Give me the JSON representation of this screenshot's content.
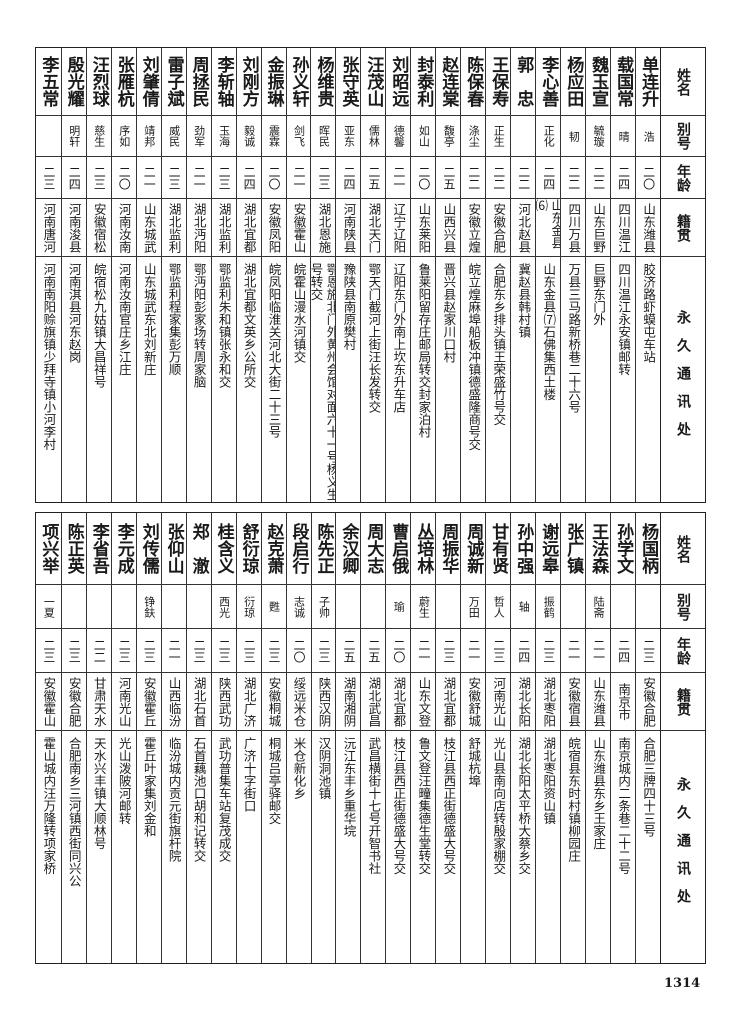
{
  "header": {
    "name": "姓名",
    "alias": "别号",
    "age": "年龄",
    "origin": "籍贯",
    "address": "永久通讯处"
  },
  "tables": [
    {
      "rows": [
        {
          "name": "单连升",
          "alias": "浩",
          "age": "二〇",
          "origin": "山东潍县",
          "address": "胶济路虾蟆屯车站"
        },
        {
          "name": "载国常",
          "alias": "晴",
          "age": "二四",
          "origin": "四川温江",
          "address": "四川温江永安镇邮转"
        },
        {
          "name": "魏玉宣",
          "alias": "毓璇",
          "age": "二二",
          "origin": "山东巨野",
          "address": "巨野东门外"
        },
        {
          "name": "杨应田",
          "alias": "韧",
          "age": "二二",
          "origin": "四川万县",
          "address": "万县三马路新桥巷二十六号"
        },
        {
          "name": "李心善",
          "alias": "正化",
          "age": "二四",
          "origin": "山东金县⑹",
          "address": "山东金县⑺石佛集西土楼"
        },
        {
          "name": "郭　忠",
          "alias": "",
          "age": "二二",
          "origin": "河北赵县",
          "address": "冀赵县韩村镇"
        },
        {
          "name": "王保寿",
          "alias": "正生",
          "age": "二二",
          "origin": "安徽合肥",
          "address": "合肥东乡排头镇王荣盛竹号交"
        },
        {
          "name": "陈保春",
          "alias": "涤尘",
          "age": "二二",
          "origin": "安徽立煌",
          "address": "皖立煌麻埠船板冲镇德盛隆商号交"
        },
        {
          "name": "赵连棠",
          "alias": "馥亭",
          "age": "二五",
          "origin": "山西兴县",
          "address": "晋兴县赵家川口村"
        },
        {
          "name": "封泰利",
          "alias": "如山",
          "age": "二〇",
          "origin": "山东莱阳",
          "address": "鲁莱阳留存庄邮局转交封家泊村"
        },
        {
          "name": "刘昭远",
          "alias": "德馨",
          "age": "二一",
          "origin": "辽宁辽阳",
          "address": "辽阳东门外南上坎东升车店"
        },
        {
          "name": "汪茂山",
          "alias": "儒林",
          "age": "二五",
          "origin": "湖北天门",
          "address": "鄂天门截河上街汪长发转交"
        },
        {
          "name": "张守英",
          "alias": "亚东",
          "age": "二四",
          "origin": "河南陕县",
          "address": "豫陕县南原樊村"
        },
        {
          "name": "杨维贵",
          "alias": "晖民",
          "age": "二三",
          "origin": "湖北恩施",
          "address": "鄂恩施北门外黄州会馆对面六十一号杨义生号转交"
        },
        {
          "name": "孙义轩",
          "alias": "剑飞",
          "age": "二一",
          "origin": "安徽霍山",
          "address": "皖霍山漫水河镇交"
        },
        {
          "name": "金振琳",
          "alias": "震霖",
          "age": "二〇",
          "origin": "安徽凤阳",
          "address": "皖凤阳临淮关河北大街二十三号"
        },
        {
          "name": "刘刚方",
          "alias": "毅诚",
          "age": "二四",
          "origin": "湖北宜都",
          "address": "湖北宜都文英乡公所交"
        },
        {
          "name": "李斩轴",
          "alias": "玉海",
          "age": "二三",
          "origin": "湖北监利",
          "address": "鄂监利朱和镇张永和交"
        },
        {
          "name": "周拯民",
          "alias": "劲军",
          "age": "二一",
          "origin": "湖北沔阳",
          "address": "鄂沔阳彭家场转周家脑"
        },
        {
          "name": "雷子斌",
          "alias": "威民",
          "age": "二三",
          "origin": "湖北监利",
          "address": "鄂监利程家集彭万顺"
        },
        {
          "name": "刘肇倩",
          "alias": "靖邦",
          "age": "二一",
          "origin": "山东城武",
          "address": "山东城武东北刘新庄"
        },
        {
          "name": "张雁杭",
          "alias": "序如",
          "age": "二〇",
          "origin": "河南汝南",
          "address": "河南汝南官庄乡江庄"
        },
        {
          "name": "汪烈球",
          "alias": "慈生",
          "age": "二三",
          "origin": "安徽宿松",
          "address": "皖宿松九姑镇大昌祥号"
        },
        {
          "name": "殷光耀",
          "alias": "明轩",
          "age": "二四",
          "origin": "河南浚县",
          "address": "河南淇县河东赵岗"
        },
        {
          "name": "李五常",
          "alias": "",
          "age": "二三",
          "origin": "河南唐河",
          "address": "河南南阳赊旗镇少拜寺镇小河李村"
        }
      ]
    },
    {
      "rows": [
        {
          "name": "杨国柄",
          "alias": "",
          "age": "二三",
          "origin": "安徽合肥",
          "address": "合肥三牌四十三号"
        },
        {
          "name": "孙学文",
          "alias": "",
          "age": "二四",
          "origin": "南京市",
          "address": "南京城内二条巷二十二号"
        },
        {
          "name": "王法森",
          "alias": "陆斋",
          "age": "二一",
          "origin": "山东潍县",
          "address": "山东潍县东乡王家庄"
        },
        {
          "name": "张广镇",
          "alias": "",
          "age": "二一",
          "origin": "安徽宿县",
          "address": "皖宿县东时村镇柳园庄"
        },
        {
          "name": "谢远皋",
          "alias": "振鹤",
          "age": "二三",
          "origin": "湖北枣阳",
          "address": "湖北枣阳资山镇"
        },
        {
          "name": "孙中强",
          "alias": "轴",
          "age": "二四",
          "origin": "湖北长阳",
          "address": "湖北长阳太平桥大蔡乡交"
        },
        {
          "name": "甘有贤",
          "alias": "哲人",
          "age": "二三",
          "origin": "河南光山",
          "address": "光山县南向店转殷家棚交"
        },
        {
          "name": "周诚新",
          "alias": "万田",
          "age": "二一",
          "origin": "安徽舒城",
          "address": "舒城杭埠"
        },
        {
          "name": "周振华",
          "alias": "",
          "age": "二三",
          "origin": "湖北宜都",
          "address": "枝江县西正街德盛大号交"
        },
        {
          "name": "丛培林",
          "alias": "蔚生",
          "age": "二一",
          "origin": "山东文登",
          "address": "鲁文登汪疃集德生堂转交"
        },
        {
          "name": "曹启俄",
          "alias": "瑜",
          "age": "二〇",
          "origin": "湖北宜都",
          "address": "枝江县西正街德盛大号交"
        },
        {
          "name": "周大志",
          "alias": "",
          "age": "二五",
          "origin": "湖北武昌",
          "address": "武昌横街十七号开智书社"
        },
        {
          "name": "余汉卿",
          "alias": "",
          "age": "二五",
          "origin": "湖南湘阴",
          "address": "沅江东丰乡重华垸"
        },
        {
          "name": "陈先正",
          "alias": "子帅",
          "age": "二三",
          "origin": "陕西汉阴",
          "address": "汉阴洞池镇"
        },
        {
          "name": "段启行",
          "alias": "志诚",
          "age": "二〇",
          "origin": "绥远米仓",
          "address": "米仓新化乡"
        },
        {
          "name": "赵克萧",
          "alias": "甦",
          "age": "二三",
          "origin": "安徽桐城",
          "address": "桐城吕亭驿邮交"
        },
        {
          "name": "舒衍琼",
          "alias": "衍琼",
          "age": "二三",
          "origin": "湖北广济",
          "address": "广济十字街口"
        },
        {
          "name": "桂含义",
          "alias": "西光",
          "age": "二三",
          "origin": "陕西武功",
          "address": "武功普集车站复茂成交"
        },
        {
          "name": "郑　澈",
          "alias": "",
          "age": "二三",
          "origin": "湖北石首",
          "address": "石首藕池口胡和记转交"
        },
        {
          "name": "张仰山",
          "alias": "",
          "age": "二一",
          "origin": "山西临汾",
          "address": "临汾城内贡元街旗杆院"
        },
        {
          "name": "刘传儒",
          "alias": "铮鈇",
          "age": "二三",
          "origin": "安徽霍丘",
          "address": "霍丘叶家集刘金和"
        },
        {
          "name": "李元成",
          "alias": "",
          "age": "二三",
          "origin": "河南光山",
          "address": "光山泼陂河邮转"
        },
        {
          "name": "李省吾",
          "alias": "",
          "age": "二二",
          "origin": "甘肃天水",
          "address": "天水兴丰镇大顺林号"
        },
        {
          "name": "陈正英",
          "alias": "",
          "age": "二三",
          "origin": "安徽合肥",
          "address": "合肥南乡三河镇西街同兴公"
        },
        {
          "name": "项兴举",
          "alias": "一夏",
          "age": "二三",
          "origin": "安徽霍山",
          "address": "霍山城内汪万隆转项家桥"
        }
      ]
    }
  ],
  "page_number": "1314"
}
